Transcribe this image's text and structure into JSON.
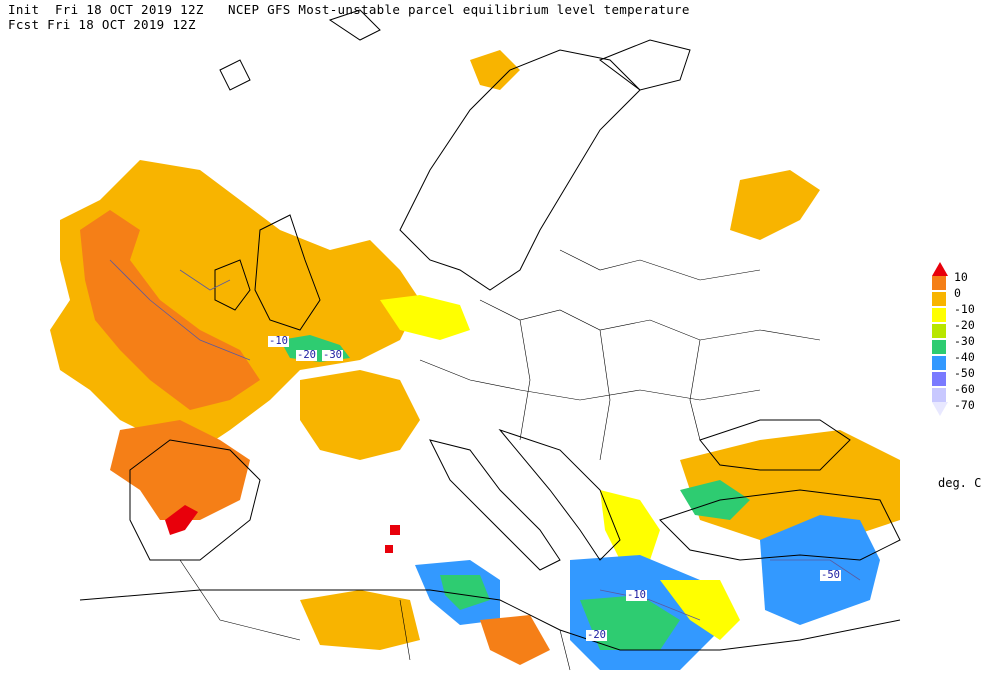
{
  "header": {
    "init_line": "Init  Fri 18 OCT 2019 12Z",
    "product_title": "NCEP GFS Most-unstable parcel equilibrium level temperature",
    "fcst_line": "Fcst Fri 18 OCT 2019 12Z"
  },
  "legend": {
    "items": [
      {
        "label": "10",
        "color": "#e8000b"
      },
      {
        "label": "0",
        "color": "#f57f17"
      },
      {
        "label": "-10",
        "color": "#f8b400"
      },
      {
        "label": "-20",
        "color": "#ffff00"
      },
      {
        "label": "-30",
        "color": "#b8e600"
      },
      {
        "label": "-40",
        "color": "#2ecc71"
      },
      {
        "label": "-50",
        "color": "#3399ff"
      },
      {
        "label": "-60",
        "color": "#7a7aff"
      },
      {
        "label": "-70",
        "color": "#c8c8ff"
      }
    ],
    "bottom_color": "#e8e8ff",
    "units": "deg. C"
  },
  "contour_labels": [
    {
      "text": "-10"
    },
    {
      "text": "-20"
    },
    {
      "text": "-30"
    },
    {
      "text": "-50"
    },
    {
      "text": "-20"
    },
    {
      "text": "-10"
    }
  ],
  "colors": {
    "coastline": "#000000",
    "contour_line": "#5a5aa0"
  }
}
